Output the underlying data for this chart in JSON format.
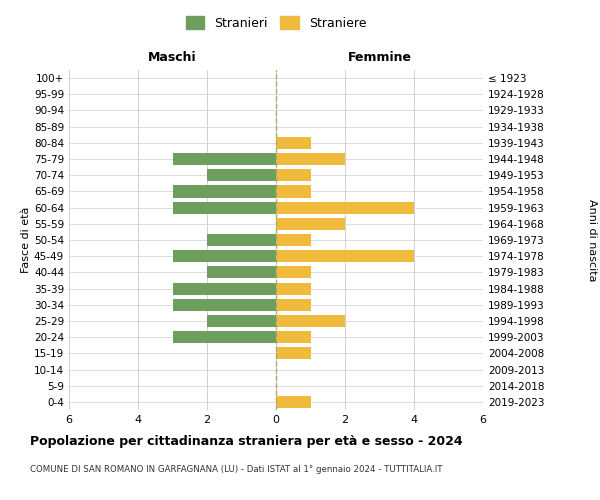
{
  "age_groups": [
    "100+",
    "95-99",
    "90-94",
    "85-89",
    "80-84",
    "75-79",
    "70-74",
    "65-69",
    "60-64",
    "55-59",
    "50-54",
    "45-49",
    "40-44",
    "35-39",
    "30-34",
    "25-29",
    "20-24",
    "15-19",
    "10-14",
    "5-9",
    "0-4"
  ],
  "birth_years": [
    "≤ 1923",
    "1924-1928",
    "1929-1933",
    "1934-1938",
    "1939-1943",
    "1944-1948",
    "1949-1953",
    "1954-1958",
    "1959-1963",
    "1964-1968",
    "1969-1973",
    "1974-1978",
    "1979-1983",
    "1984-1988",
    "1989-1993",
    "1994-1998",
    "1999-2003",
    "2004-2008",
    "2009-2013",
    "2014-2018",
    "2019-2023"
  ],
  "maschi": [
    0,
    0,
    0,
    0,
    0,
    3,
    2,
    3,
    3,
    0,
    2,
    3,
    2,
    3,
    3,
    2,
    3,
    0,
    0,
    0,
    0
  ],
  "femmine": [
    0,
    0,
    0,
    0,
    1,
    2,
    1,
    1,
    4,
    2,
    1,
    4,
    1,
    1,
    1,
    2,
    1,
    1,
    0,
    0,
    1
  ],
  "male_color": "#6d9e5b",
  "female_color": "#f0bb3d",
  "title": "Popolazione per cittadinanza straniera per età e sesso - 2024",
  "subtitle": "COMUNE DI SAN ROMANO IN GARFAGNANA (LU) - Dati ISTAT al 1° gennaio 2024 - TUTTITALIA.IT",
  "ylabel_left": "Fasce di età",
  "ylabel_right": "Anni di nascita",
  "xlabel_left": "Maschi",
  "xlabel_right": "Femmine",
  "legend_male": "Stranieri",
  "legend_female": "Straniere",
  "xlim": 6,
  "background_color": "#ffffff",
  "grid_color": "#d0d0d0"
}
